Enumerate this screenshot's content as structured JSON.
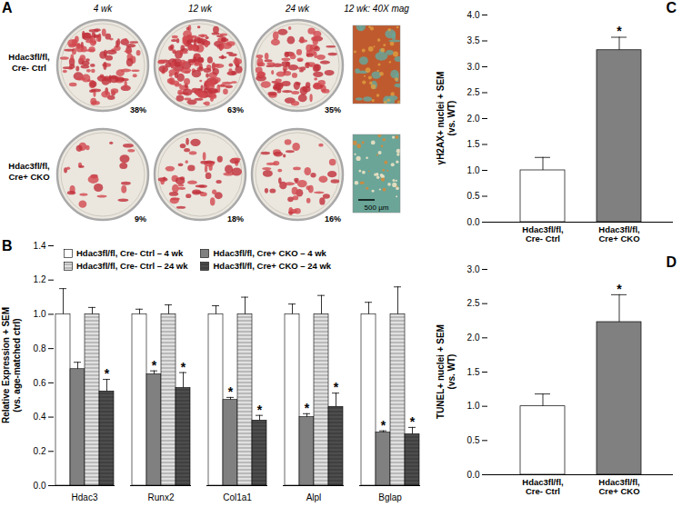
{
  "panel_a": {
    "panel_label": "A",
    "columns": [
      "4 wk",
      "12 wk",
      "24 wk",
      "12 wk: 40X mag"
    ],
    "rows": [
      {
        "label": "Hdac3fl/fl, Cre- Ctrl",
        "values": [
          38,
          63,
          35
        ],
        "value_labels": [
          "38%",
          "63%",
          "35%"
        ]
      },
      {
        "label": "Hdac3fl/fl, Cre+ CKO",
        "values": [
          9,
          18,
          16
        ],
        "value_labels": [
          "9%",
          "18%",
          "16%"
        ]
      }
    ],
    "scale_bar": "500 µm"
  },
  "chart_data": [
    {
      "panel_label": "B",
      "type": "bar",
      "y_label": "Relative Expression + SEM (vs. age-matched ctrl)",
      "categories": [
        "Hdac3",
        "Runx2",
        "Col1a1",
        "Alpl",
        "Bglap"
      ],
      "series": [
        {
          "name": "Hdac3fl/fl, Cre- Ctrl – 4 wk",
          "color": "#ffffff",
          "values": [
            1.0,
            1.0,
            1.0,
            1.0,
            1.0
          ],
          "errors": [
            0.15,
            0.03,
            0.05,
            0.06,
            0.07
          ],
          "annotations": [
            null,
            null,
            null,
            null,
            null
          ]
        },
        {
          "name": "Hdac3fl/fl, Cre+ CKO – 4 wk",
          "color": "#808080",
          "values": [
            0.68,
            0.65,
            0.5,
            0.4,
            0.31
          ],
          "errors": [
            0.04,
            0.02,
            0.015,
            0.02,
            0.01
          ],
          "annotations": [
            null,
            "*",
            "*",
            "*",
            "*"
          ]
        },
        {
          "name": "Hdac3fl/fl, Cre- Ctrl – 24 wk",
          "color": "#e0e0e0",
          "values": [
            1.0,
            1.0,
            1.0,
            1.0,
            1.0
          ],
          "errors": [
            0.04,
            0.055,
            0.1,
            0.11,
            0.16
          ],
          "annotations": [
            null,
            null,
            null,
            null,
            null
          ]
        },
        {
          "name": "Hdac3fl/fl, Cre+ CKO – 24 wk",
          "color": "#4d4d4d",
          "values": [
            0.55,
            0.57,
            0.38,
            0.46,
            0.3
          ],
          "errors": [
            0.07,
            0.09,
            0.03,
            0.08,
            0.04
          ],
          "annotations": [
            "*",
            "*",
            "*",
            "*",
            "*"
          ]
        }
      ],
      "ylim": [
        0,
        1.4
      ],
      "yticks": [
        {
          "value": 0,
          "label": "0.0"
        },
        0.2,
        0.4,
        0.6,
        0.8,
        {
          "value": 1,
          "label": "1.0"
        },
        1.2,
        1.4
      ],
      "legend": "top-left"
    },
    {
      "panel_label": "C",
      "type": "bar",
      "y_label": "γH2AX+ nuclei + SEM (vs. WT)",
      "categories": [
        "Hdac3fl/fl, Cre- Ctrl",
        "Hdac3fl/fl, Cre+ CKO"
      ],
      "values": [
        1.0,
        3.32
      ],
      "errors": [
        0.25,
        0.25
      ],
      "annotations": [
        null,
        "*"
      ],
      "colors": [
        "#ffffff",
        "#808080"
      ],
      "ylim": [
        0,
        4
      ],
      "yticks": [
        {
          "value": 0,
          "label": "0.0"
        },
        0.5,
        {
          "value": 1,
          "label": "1.0"
        },
        1.5,
        {
          "value": 2,
          "label": "2.0"
        },
        2.5,
        {
          "value": 3,
          "label": "3.0"
        },
        3.5,
        {
          "value": 4,
          "label": "4.0"
        }
      ]
    },
    {
      "panel_label": "D",
      "type": "bar",
      "y_label": "TUNEL+ nuclei + SEM (vs. WT)",
      "categories": [
        "Hdac3fl/fl, Cre- Ctrl",
        "Hdac3fl/fl, Cre+ CKO"
      ],
      "values": [
        1.0,
        2.23
      ],
      "errors": [
        0.18,
        0.4
      ],
      "annotations": [
        null,
        "*"
      ],
      "colors": [
        "#ffffff",
        "#808080"
      ],
      "ylim": [
        0,
        3
      ],
      "yticks": [
        {
          "value": 0,
          "label": "0.0"
        },
        0.5,
        {
          "value": 1,
          "label": "1.0"
        },
        1.5,
        {
          "value": 2,
          "label": "2.0"
        },
        2.5,
        {
          "value": 3,
          "label": "3.0"
        }
      ]
    }
  ]
}
